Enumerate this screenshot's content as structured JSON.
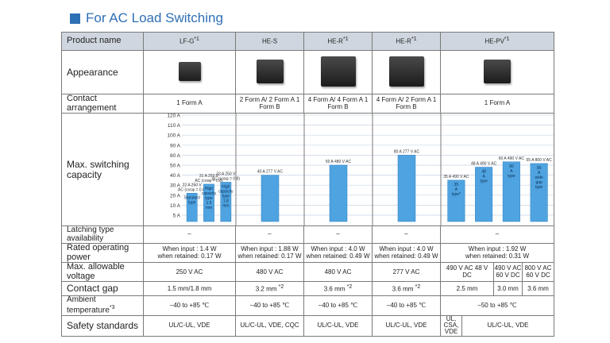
{
  "section_title": "For AC Load Switching",
  "row_labels": {
    "product_name": "Product name",
    "appearance": "Appearance",
    "contact_arrangement": "Contact arrangement",
    "max_switching_capacity": "Max. switching capacity",
    "latching": "Latching type availability",
    "rated_power": "Rated operating power",
    "max_voltage": "Max. allowable voltage",
    "contact_gap": "Contact gap",
    "ambient_temp": "Ambient temperature",
    "ambient_temp_note": "*3",
    "safety": "Safety standards"
  },
  "products": [
    {
      "name": "LF-G",
      "note": "*1"
    },
    {
      "name": "HE-S",
      "note": ""
    },
    {
      "name": "HE-R",
      "note": "*1"
    },
    {
      "name": "HE-R",
      "note": "*1"
    },
    {
      "name": "HE-PV",
      "note": "*1"
    }
  ],
  "contact": [
    "1 Form A",
    "2 Form A/ 2 Form A 1 Form B",
    "4 Form A/ 4 Form A 1 Form B",
    "4 Form A/ 2 Form A 1 Form B",
    "1 Form A"
  ],
  "latching": [
    "–",
    "–",
    "–",
    "–",
    "–"
  ],
  "rated_power": [
    {
      "l1": "When input   : 1.4  W",
      "l2": "when retained: 0.17 W"
    },
    {
      "l1": "When input   : 1.88 W",
      "l2": "when retained: 0.17 W"
    },
    {
      "l1": "When input   : 4.0  W",
      "l2": "when retained: 0.49 W"
    },
    {
      "l1": "When input   : 4.0  W",
      "l2": "when retained: 0.49 W"
    },
    {
      "l1": "When input   : 1.92 W",
      "l2": "when retained: 0.31 W"
    }
  ],
  "max_voltage": {
    "lfg": "250 V AC",
    "hes": "480 V AC",
    "her1": "480 V AC",
    "her2": "277 V AC",
    "hepv": [
      "490 V AC 48 V DC",
      "490 V AC 60 V DC",
      "800 V AC 60 V DC"
    ]
  },
  "contact_gap": {
    "lfg": "1.5 mm/1.8 mm",
    "hes": "3.2 mm",
    "hes_note": "*2",
    "her1": "3.6 mm",
    "her1_note": "*2",
    "her2": "3.6 mm",
    "her2_note": "*2",
    "hepv": [
      "2.5 mm",
      "3.0 mm",
      "3.6 mm"
    ]
  },
  "ambient": [
    "–40 to +85 ℃",
    "–40 to +85 ℃",
    "–40 to +85 ℃",
    "–40 to +85 ℃",
    "–50 to +85 ℃"
  ],
  "safety": {
    "lfg": "UL/C-UL, VDE",
    "hes": "UL/C-UL, VDE, CQC",
    "her1": "UL/C-UL, VDE",
    "her2": "UL/C-UL, VDE",
    "hepv_a": "UL, CSA, VDE",
    "hepv_b": "UL/C-UL, VDE"
  },
  "chart_data": {
    "type": "bar",
    "y_ticks": [
      "120 A",
      "110 A",
      "100 A",
      "90 A",
      "80 A",
      "50 A",
      "40 A",
      "30 A",
      "20 A",
      "10 A",
      "5 A"
    ],
    "y_tick_values": [
      120,
      110,
      100,
      90,
      80,
      50,
      40,
      30,
      20,
      10,
      5
    ],
    "ylim": [
      0,
      125
    ],
    "bars": [
      {
        "col": 0,
        "value": 22,
        "label": "22 A 250 V AC (cosφ = 0.8)",
        "inner": "Standard type"
      },
      {
        "col": 0,
        "value": 31,
        "label": "31 A 250 V AC (cosφ = 0.8)",
        "inner": "High capacity type 1.5 mm"
      },
      {
        "col": 0,
        "value": 33,
        "label": "33 A 250 V AC (cosφ = 0.8)",
        "inner": "High capacity type 1.8 mm"
      },
      {
        "col": 1,
        "value": 40,
        "label": "40 A 277 V AC",
        "inner": ""
      },
      {
        "col": 2,
        "value": 50,
        "label": "50 A 480 V AC",
        "inner": ""
      },
      {
        "col": 3,
        "value": 80,
        "label": "80 A 277 V AC",
        "inner": ""
      },
      {
        "col": 4,
        "value": 35,
        "label": "35 A 490 V AC",
        "inner": "35 A type*"
      },
      {
        "col": 4,
        "value": 48,
        "label": "48 A 490 V AC",
        "inner": "48 A type"
      },
      {
        "col": 4,
        "value": 60,
        "label": "60 A 490 V AC",
        "inner": "90 A type"
      },
      {
        "col": 4,
        "value": 55,
        "label": "55 A 800 V AC",
        "inner": "90 A wide gap type"
      }
    ]
  }
}
